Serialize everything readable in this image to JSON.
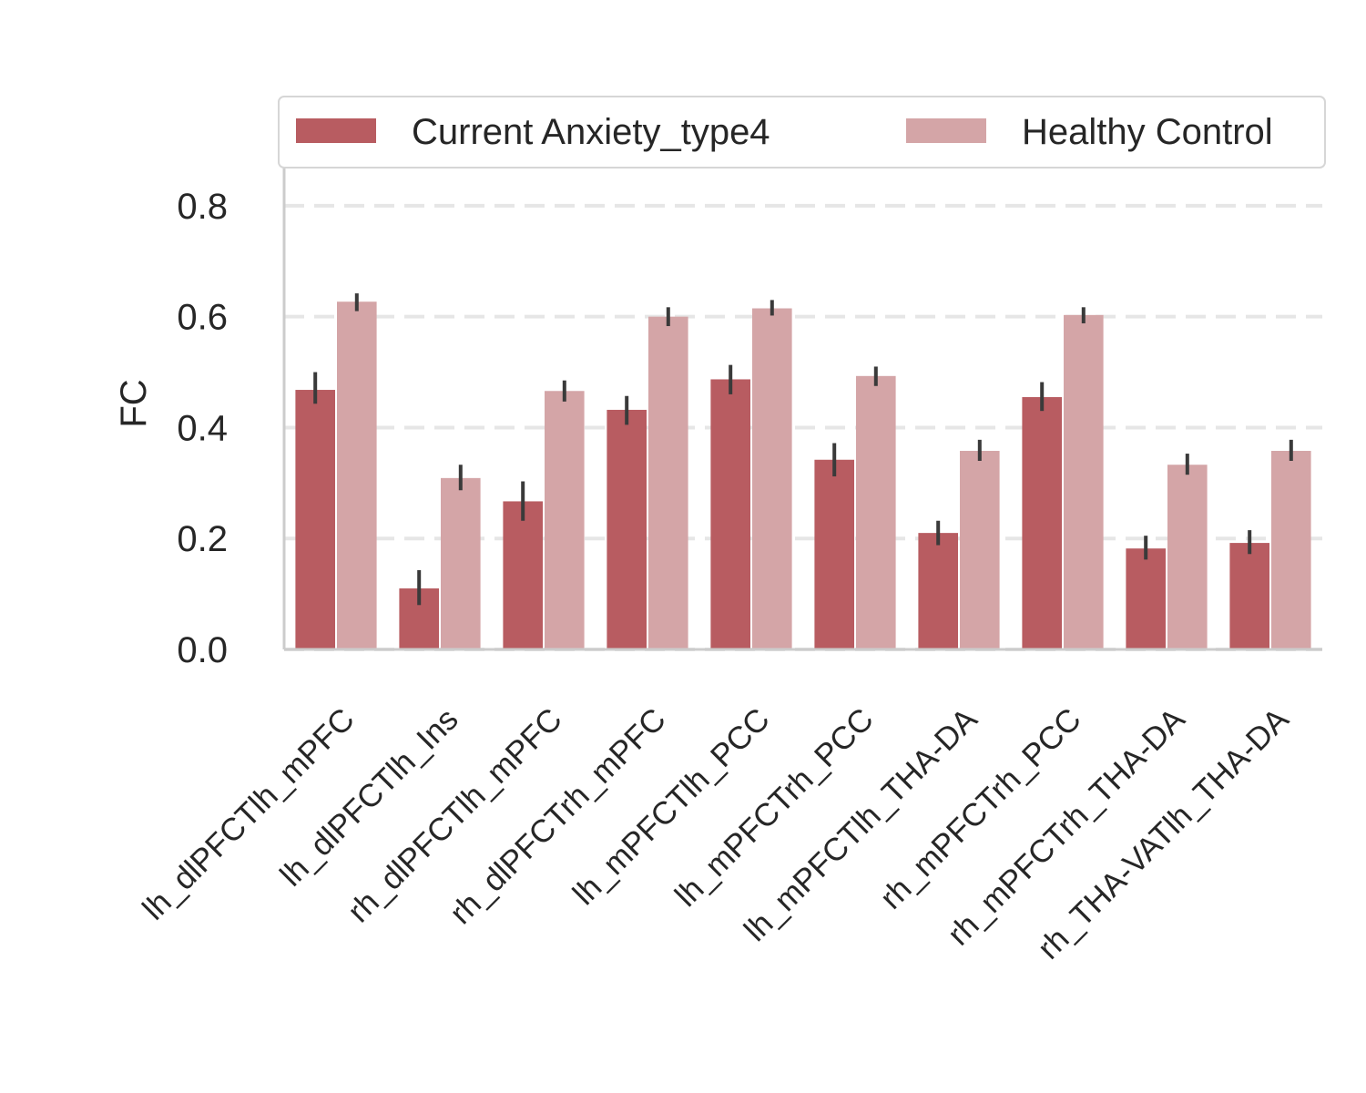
{
  "chart_data": {
    "type": "bar",
    "title": "",
    "xlabel": "",
    "ylabel": "FC",
    "ylim": [
      0,
      0.9
    ],
    "yticks": [
      0.0,
      0.2,
      0.4,
      0.6,
      0.8
    ],
    "ytick_labels": [
      "0.0",
      "0.2",
      "0.4",
      "0.6",
      "0.8"
    ],
    "grid": "horizontal dashed",
    "legend_position": "top",
    "categories": [
      "lh_dlPFCTlh_mPFC",
      "lh_dlPFCTlh_Ins",
      "rh_dlPFCTlh_mPFC",
      "rh_dlPFCTrh_mPFC",
      "lh_mPFCTlh_PCC",
      "lh_mPFCTrh_PCC",
      "lh_mPFCTlh_THA-DA",
      "rh_mPFCTrh_PCC",
      "rh_mPFCTrh_THA-DA",
      "rh_THA-VATlh_THA-DA"
    ],
    "series": [
      {
        "name": "Current Anxiety_type4",
        "color": "#b85c61",
        "values": [
          0.468,
          0.11,
          0.267,
          0.432,
          0.487,
          0.342,
          0.21,
          0.455,
          0.182,
          0.192
        ],
        "err_low": [
          0.443,
          0.08,
          0.232,
          0.405,
          0.46,
          0.312,
          0.188,
          0.43,
          0.162,
          0.172
        ],
        "err_high": [
          0.5,
          0.143,
          0.303,
          0.457,
          0.513,
          0.372,
          0.232,
          0.482,
          0.205,
          0.215
        ]
      },
      {
        "name": "Healthy Control",
        "color": "#d4a5a7",
        "values": [
          0.627,
          0.309,
          0.466,
          0.6,
          0.615,
          0.493,
          0.358,
          0.603,
          0.333,
          0.358
        ],
        "err_low": [
          0.61,
          0.287,
          0.447,
          0.583,
          0.602,
          0.475,
          0.34,
          0.588,
          0.315,
          0.34
        ],
        "err_high": [
          0.642,
          0.333,
          0.485,
          0.617,
          0.63,
          0.51,
          0.378,
          0.617,
          0.353,
          0.378
        ]
      }
    ]
  }
}
